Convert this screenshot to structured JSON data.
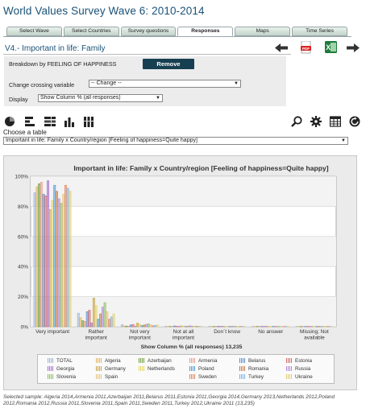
{
  "page": {
    "title": "World Values Survey Wave 6: 2010-2014"
  },
  "tabs": [
    {
      "label": "Select Wave",
      "active": false
    },
    {
      "label": "Select Countries",
      "active": false
    },
    {
      "label": "Survey questions",
      "active": false
    },
    {
      "label": "Responses",
      "active": true
    },
    {
      "label": "Maps",
      "active": false
    },
    {
      "label": "Time Series",
      "active": false
    }
  ],
  "variable": {
    "title": "V4.- Important in life: Family"
  },
  "nav": {
    "back_icon": "arrow-left-icon",
    "pdf_icon": "pdf-icon",
    "excel_icon": "excel-icon",
    "forward_icon": "arrow-right-icon"
  },
  "breakdown": {
    "label": "Breakdown by FEELING OF HAPPINESS",
    "remove_label": "Remove",
    "crossing_label": "Change crossing variable",
    "crossing_value": "-- Change --",
    "display_label": "Display",
    "display_value": "Show Column % (all responses)"
  },
  "toolbar": {
    "left_icons": [
      "pie-chart-icon",
      "horizontal-bar-icon",
      "stacked-bar-icon",
      "vertical-bar-icon",
      "stacked-column-icon"
    ],
    "right_icons": [
      "zoom-icon",
      "settings-icon",
      "table-icon",
      "refresh-icon"
    ]
  },
  "table_select": {
    "label": "Choose a table",
    "value": "Important in life: Family x Country/region [Feeling of happiness=Quite happy]"
  },
  "colors": {
    "TOTAL": "#9db3d6",
    "Algeria": "#e3b55a",
    "Azerbaijan": "#6f9e3e",
    "Armenia": "#e79a8c",
    "Belarus": "#5b8fc9",
    "Estonia": "#d76b6b",
    "Georgia": "#a56ed1",
    "Germany": "#c8a24a",
    "Netherlands": "#e6d45c",
    "Poland": "#4d9bd6",
    "Romania": "#c67b4a",
    "Russia": "#b08bd4",
    "Slovenia": "#8bbf63",
    "Spain": "#e8c27a",
    "Sweden": "#e3865f",
    "Turkey": "#7fb2e6",
    "Ukraine": "#e2cf72"
  },
  "chart_data": {
    "type": "bar",
    "title": "Important in life: Family x Country/region [Feeling of happiness=Quite happy]",
    "xlabel": "Show Column % (all responses) 13,235",
    "ylabel": "",
    "ylim": [
      0,
      100
    ],
    "y_ticks": [
      "0%",
      "20%",
      "40%",
      "60%",
      "80%",
      "100%"
    ],
    "categories": [
      [
        "Very important"
      ],
      [
        "Rather",
        "important"
      ],
      [
        "Not very",
        "important"
      ],
      [
        "Not at all",
        "important"
      ],
      [
        "Don´t know"
      ],
      [
        "No answer"
      ],
      [
        "Missing; Not",
        "available"
      ]
    ],
    "series": [
      {
        "name": "TOTAL",
        "values": [
          89,
          9,
          1.3,
          0.3,
          0.2,
          0.1,
          0.1
        ]
      },
      {
        "name": "Algeria",
        "values": [
          93,
          6,
          0.5,
          0.1,
          0.1,
          0,
          0
        ]
      },
      {
        "name": "Azerbaijan",
        "values": [
          95,
          4,
          0.4,
          0.2,
          0,
          0,
          0
        ]
      },
      {
        "name": "Armenia",
        "values": [
          96,
          3.5,
          0.4,
          0.1,
          0,
          0,
          0
        ]
      },
      {
        "name": "Belarus",
        "values": [
          88,
          10,
          1.2,
          0.5,
          0.3,
          0,
          0
        ]
      },
      {
        "name": "Estonia",
        "values": [
          87,
          11,
          1.5,
          0.3,
          0.1,
          0.1,
          0
        ]
      },
      {
        "name": "Georgia",
        "values": [
          97,
          2.5,
          0.2,
          0.1,
          0,
          0,
          0
        ]
      },
      {
        "name": "Germany",
        "values": [
          78,
          19,
          2.4,
          0.5,
          0.2,
          0.1,
          0.1
        ]
      },
      {
        "name": "Netherlands",
        "values": [
          84,
          14,
          1.7,
          0.5,
          0.1,
          0,
          0
        ]
      },
      {
        "name": "Poland",
        "values": [
          94,
          5,
          0.7,
          0.2,
          0.1,
          0.1,
          0
        ]
      },
      {
        "name": "Romania",
        "values": [
          90,
          8.5,
          1.1,
          0.2,
          0.1,
          0,
          0
        ]
      },
      {
        "name": "Russia",
        "values": [
          85,
          13,
          1.6,
          0.6,
          0.3,
          0.1,
          0
        ]
      },
      {
        "name": "Slovenia",
        "values": [
          82,
          16,
          1.9,
          0.4,
          0.2,
          0,
          0
        ]
      },
      {
        "name": "Spain",
        "values": [
          88,
          10,
          1.3,
          0.4,
          0.1,
          0.1,
          0
        ]
      },
      {
        "name": "Sweden",
        "values": [
          94,
          5,
          0.6,
          0.3,
          0.1,
          0.1,
          0
        ]
      },
      {
        "name": "Turkey",
        "values": [
          92,
          6.5,
          0.9,
          0.2,
          0.1,
          0.1,
          0
        ]
      },
      {
        "name": "Ukraine",
        "values": [
          90,
          8.5,
          1.2,
          0.3,
          0.2,
          0,
          0
        ]
      }
    ]
  },
  "legend": {
    "rows": [
      [
        "TOTAL",
        "Algeria",
        "Azerbaijan",
        "Armenia",
        "Belarus",
        "Estonia"
      ],
      [
        "Georgia",
        "Germany",
        "Netherlands",
        "Poland",
        "Romania",
        "Russia"
      ],
      [
        "Slovenia",
        "Spain",
        "",
        "Sweden",
        "Turkey",
        "Ukraine"
      ]
    ]
  },
  "footer": {
    "text": "Selected sample: Algeria 2014,Armenia 2011,Azerbaijan 2011,Belarus 2011,Estonia 2011,Georgia 2014,Germany 2013,Netherlands 2012,Poland 2012,Romania 2012,Russia 2011,Slovenia 2011,Spain 2011,Sweden 2011,Turkey 2012,Ukraine 2011 (13,235)"
  }
}
